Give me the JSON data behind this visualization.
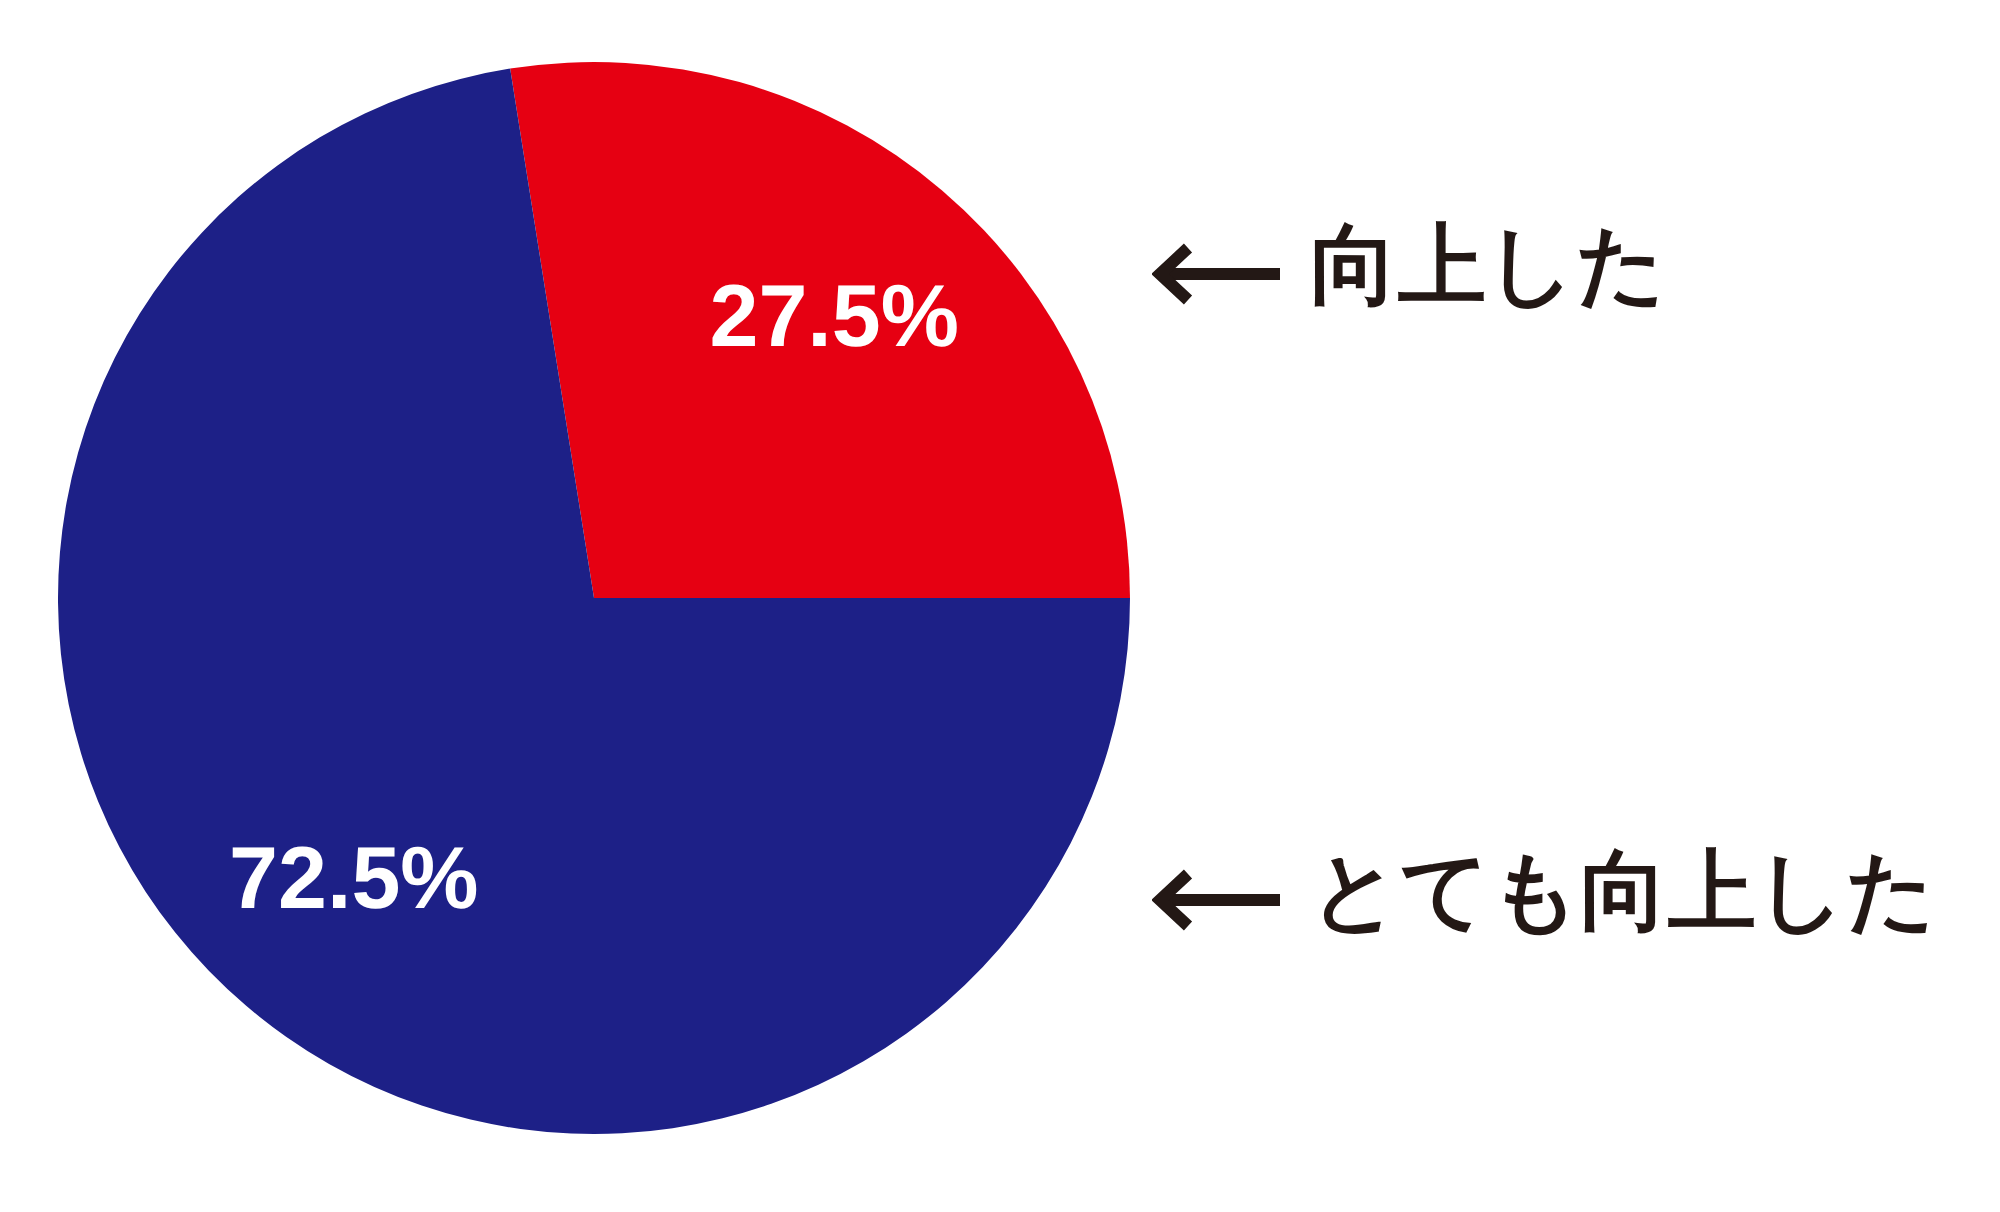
{
  "chart_data": {
    "type": "pie",
    "categories": [
      "向上した",
      "とても向上した"
    ],
    "values": [
      27.5,
      72.5
    ],
    "colors": [
      "#e60012",
      "#1d2087"
    ],
    "value_labels": [
      "27.5%",
      "72.5%"
    ]
  }
}
